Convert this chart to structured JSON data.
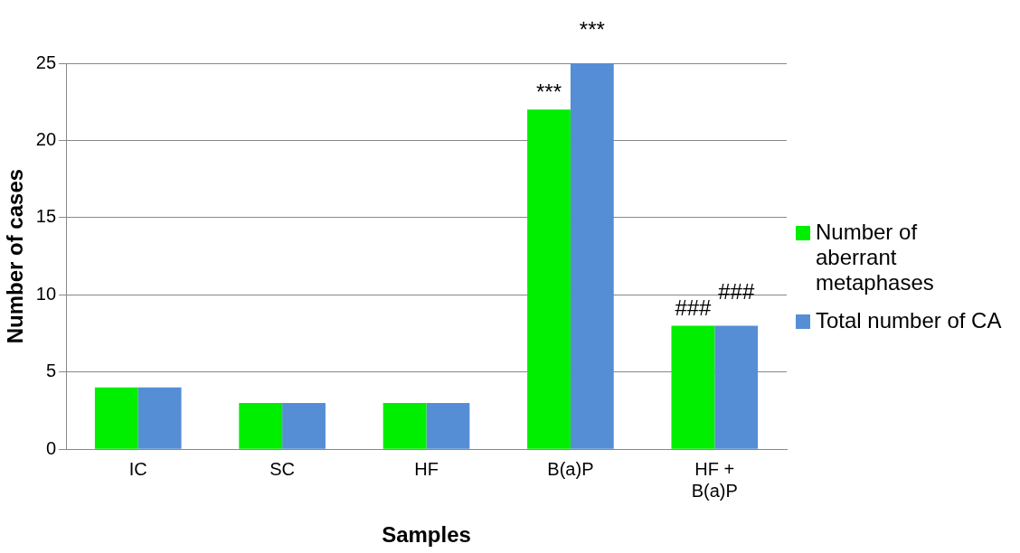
{
  "chart_data": {
    "type": "bar",
    "xlabel": "Samples",
    "ylabel": "Number of cases",
    "categories": [
      "IC",
      "SC",
      "HF",
      "B(a)P",
      "HF + B(a)P"
    ],
    "series": [
      {
        "name": "Number of aberrant metaphases",
        "color": "#00ee00",
        "values": [
          4,
          3,
          3,
          22,
          8
        ]
      },
      {
        "name": "Total number of CA",
        "color": "#558ed5",
        "values": [
          4,
          3,
          3,
          25,
          8
        ]
      }
    ],
    "ylim": [
      0,
      25
    ],
    "yticks": [
      0,
      5,
      10,
      15,
      20,
      25
    ],
    "grid": "y",
    "legend": "right",
    "annotations": [
      {
        "text": "***",
        "x": "B(a)P",
        "y": 22
      },
      {
        "text": "***",
        "x": "B(a)P",
        "y": 25
      },
      {
        "text": "###",
        "x": "HF + B(a)P",
        "y": 8
      },
      {
        "text": "###",
        "x": "HF + B(a)P",
        "y": 8
      }
    ]
  }
}
